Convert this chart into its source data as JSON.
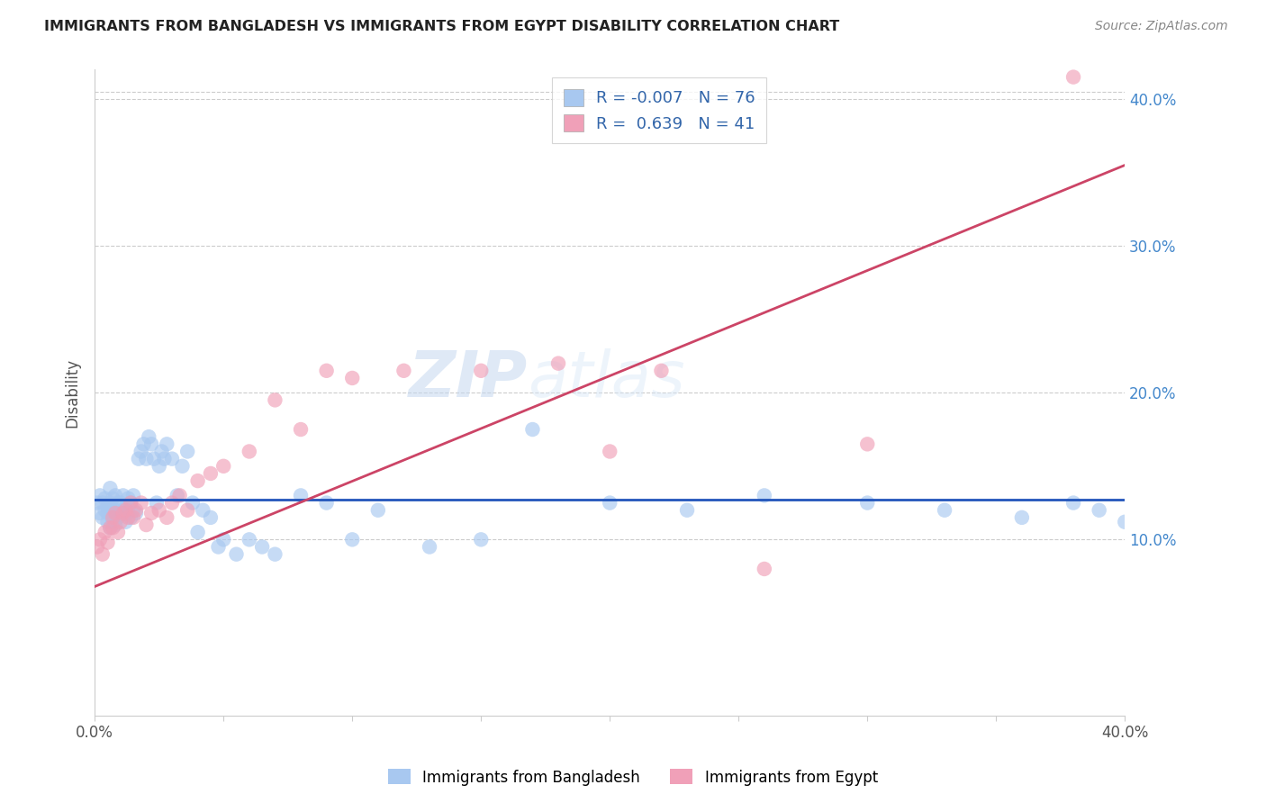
{
  "title": "IMMIGRANTS FROM BANGLADESH VS IMMIGRANTS FROM EGYPT DISABILITY CORRELATION CHART",
  "source": "Source: ZipAtlas.com",
  "ylabel": "Disability",
  "legend_label1": "Immigrants from Bangladesh",
  "legend_label2": "Immigrants from Egypt",
  "r1": -0.007,
  "n1": 76,
  "r2": 0.639,
  "n2": 41,
  "color_blue": "#A8C8F0",
  "color_pink": "#F0A0B8",
  "color_blue_line": "#2255BB",
  "color_pink_line": "#CC4466",
  "watermark_zip": "ZIP",
  "watermark_atlas": "atlas",
  "xlim": [
    0.0,
    0.4
  ],
  "ylim_low": -0.02,
  "ylim_high": 0.42,
  "background_color": "#ffffff",
  "blue_x": [
    0.001,
    0.002,
    0.002,
    0.003,
    0.003,
    0.004,
    0.004,
    0.005,
    0.005,
    0.005,
    0.006,
    0.006,
    0.006,
    0.007,
    0.007,
    0.007,
    0.008,
    0.008,
    0.008,
    0.009,
    0.009,
    0.01,
    0.01,
    0.011,
    0.011,
    0.012,
    0.012,
    0.013,
    0.013,
    0.014,
    0.014,
    0.015,
    0.015,
    0.016,
    0.017,
    0.018,
    0.019,
    0.02,
    0.021,
    0.022,
    0.023,
    0.024,
    0.025,
    0.026,
    0.027,
    0.028,
    0.03,
    0.032,
    0.034,
    0.036,
    0.038,
    0.04,
    0.042,
    0.045,
    0.048,
    0.05,
    0.055,
    0.06,
    0.065,
    0.07,
    0.08,
    0.09,
    0.1,
    0.11,
    0.13,
    0.15,
    0.17,
    0.2,
    0.23,
    0.26,
    0.3,
    0.33,
    0.36,
    0.38,
    0.39,
    0.4
  ],
  "blue_y": [
    0.125,
    0.13,
    0.118,
    0.125,
    0.115,
    0.12,
    0.128,
    0.112,
    0.118,
    0.122,
    0.108,
    0.125,
    0.135,
    0.112,
    0.118,
    0.128,
    0.11,
    0.12,
    0.13,
    0.115,
    0.125,
    0.118,
    0.125,
    0.12,
    0.13,
    0.112,
    0.122,
    0.118,
    0.128,
    0.115,
    0.125,
    0.12,
    0.13,
    0.118,
    0.155,
    0.16,
    0.165,
    0.155,
    0.17,
    0.165,
    0.155,
    0.125,
    0.15,
    0.16,
    0.155,
    0.165,
    0.155,
    0.13,
    0.15,
    0.16,
    0.125,
    0.105,
    0.12,
    0.115,
    0.095,
    0.1,
    0.09,
    0.1,
    0.095,
    0.09,
    0.13,
    0.125,
    0.1,
    0.12,
    0.095,
    0.1,
    0.175,
    0.125,
    0.12,
    0.13,
    0.125,
    0.12,
    0.115,
    0.125,
    0.12,
    0.112
  ],
  "pink_x": [
    0.001,
    0.002,
    0.003,
    0.004,
    0.005,
    0.006,
    0.007,
    0.007,
    0.008,
    0.009,
    0.01,
    0.011,
    0.012,
    0.013,
    0.014,
    0.015,
    0.016,
    0.018,
    0.02,
    0.022,
    0.025,
    0.028,
    0.03,
    0.033,
    0.036,
    0.04,
    0.045,
    0.05,
    0.06,
    0.07,
    0.08,
    0.09,
    0.1,
    0.12,
    0.15,
    0.18,
    0.2,
    0.22,
    0.26,
    0.3,
    0.38
  ],
  "pink_y": [
    0.095,
    0.1,
    0.09,
    0.105,
    0.098,
    0.108,
    0.115,
    0.108,
    0.118,
    0.105,
    0.112,
    0.118,
    0.12,
    0.115,
    0.125,
    0.115,
    0.12,
    0.125,
    0.11,
    0.118,
    0.12,
    0.115,
    0.125,
    0.13,
    0.12,
    0.14,
    0.145,
    0.15,
    0.16,
    0.195,
    0.175,
    0.215,
    0.21,
    0.215,
    0.215,
    0.22,
    0.16,
    0.215,
    0.08,
    0.165,
    0.415
  ],
  "pink_line_x0": 0.0,
  "pink_line_y0": 0.068,
  "pink_line_x1": 0.4,
  "pink_line_y1": 0.355,
  "blue_line_y": 0.127
}
